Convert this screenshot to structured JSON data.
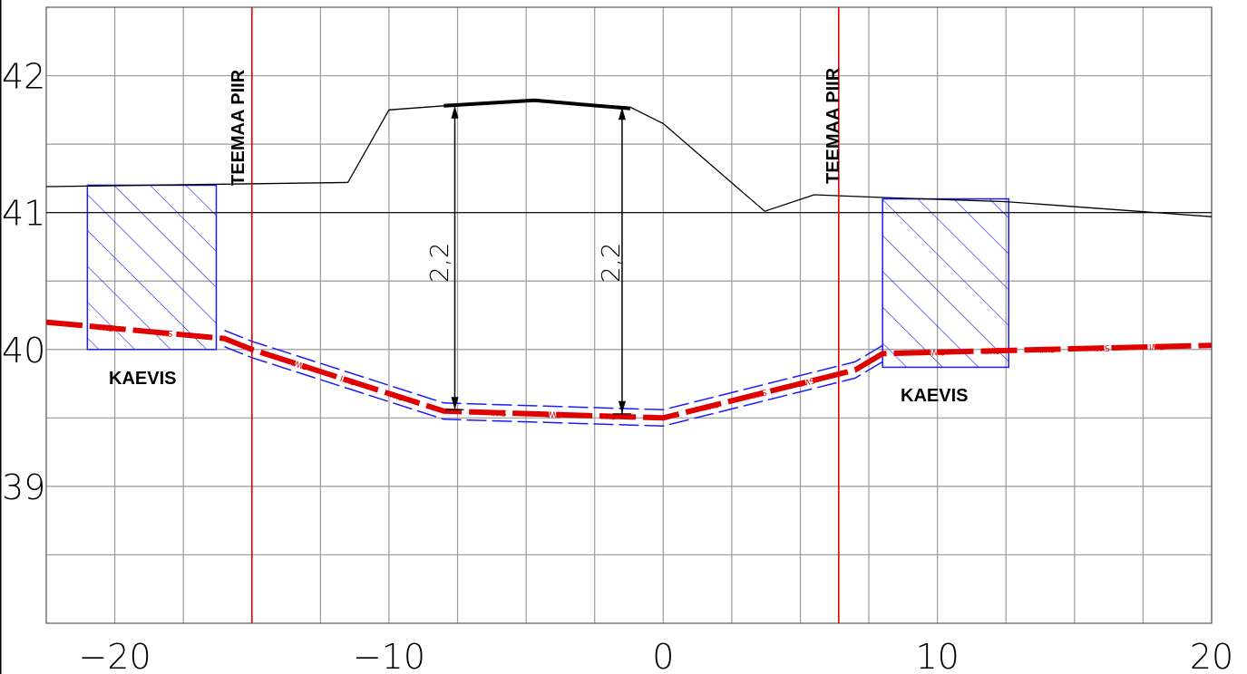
{
  "x_axis": {
    "ticks": [
      -20,
      -10,
      0,
      10,
      20
    ],
    "tick_labels": [
      "−20",
      "−10",
      "0",
      "10",
      "20"
    ],
    "range": [
      -22.5,
      20
    ]
  },
  "y_axis": {
    "ticks": [
      39,
      40,
      41,
      42
    ],
    "tick_labels": [
      "39",
      "40",
      "41",
      "42"
    ],
    "range": [
      38,
      42.5
    ]
  },
  "labels": {
    "boundary_left": "TEEMAA PIIR",
    "boundary_right": "TEEMAA PIIR",
    "excavation_left": "KAEVIS",
    "excavation_right": "KAEVIS",
    "dimension_left": "2,2",
    "dimension_right": "2,2",
    "pipe_tag": "SWI"
  },
  "colors": {
    "grid": "#9a9a9a",
    "boundary": "#e00000",
    "pipe": "#e00000",
    "trench": "#1a1aff",
    "ground": "#000000"
  },
  "profile": {
    "ground_line": [
      [
        -22.5,
        41.19
      ],
      [
        -11.5,
        41.22
      ],
      [
        -10,
        41.75
      ],
      [
        -8,
        41.78
      ],
      [
        -4.7,
        41.82
      ],
      [
        -1.2,
        41.77
      ],
      [
        0,
        41.65
      ],
      [
        3.7,
        41.01
      ],
      [
        5.5,
        41.13
      ],
      [
        8,
        41.11
      ],
      [
        12.5,
        41.08
      ],
      [
        20,
        40.97
      ]
    ],
    "road_surface": [
      [
        -8,
        41.78
      ],
      [
        -4.7,
        41.82
      ],
      [
        -1.2,
        41.76
      ]
    ],
    "reference_line_level": 41,
    "pipe_line": [
      [
        -22.5,
        40.2
      ],
      [
        -16,
        40.08
      ],
      [
        -15,
        40.0
      ],
      [
        -8,
        39.55
      ],
      [
        0,
        39.5
      ],
      [
        7,
        39.85
      ],
      [
        8,
        39.97
      ],
      [
        20,
        40.03
      ]
    ],
    "boundaries_x": [
      -15,
      6.4
    ],
    "excavations": [
      {
        "x": [
          -21,
          -16.3
        ],
        "y": [
          40.0,
          41.2
        ]
      },
      {
        "x": [
          8,
          12.6
        ],
        "y": [
          39.87,
          41.1
        ]
      }
    ],
    "dimensions": [
      {
        "x": -7.6,
        "y_top": 41.78,
        "y_bottom": 39.56
      },
      {
        "x": -1.5,
        "y_top": 41.77,
        "y_bottom": 39.53
      }
    ]
  }
}
